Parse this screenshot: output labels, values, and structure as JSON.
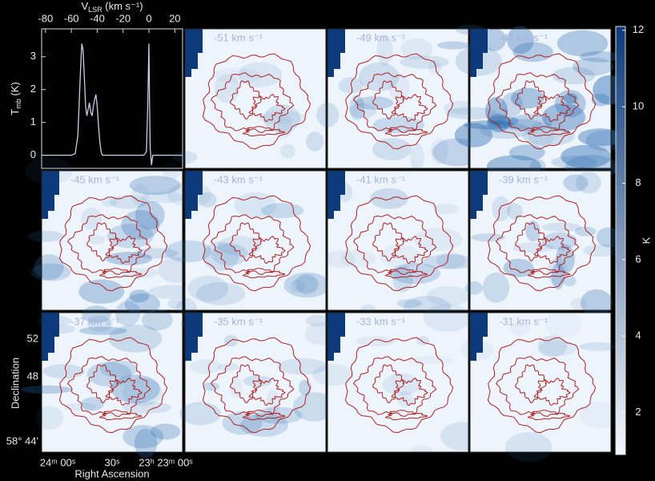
{
  "chart_data": [
    {
      "type": "line",
      "xlabel": {
        "main": "V",
        "sub": "LSR",
        "rest": " (km s⁻¹)"
      },
      "ylabel": {
        "main": "T",
        "sub": "mb",
        "rest": " (K)"
      },
      "x": [
        -83,
        -70,
        -60,
        -57,
        -55,
        -53,
        -52,
        -51,
        -50,
        -49,
        -48,
        -47,
        -46,
        -45,
        -44,
        -43,
        -42,
        -41,
        -40,
        -39,
        -38,
        -37,
        -36,
        -34,
        -30,
        -20,
        -10,
        -4,
        -2,
        -1,
        0,
        0.5,
        1,
        2,
        3,
        5,
        10,
        20,
        26
      ],
      "series": [
        {
          "color": "#c8cde6",
          "values": [
            0,
            0,
            0,
            0.05,
            0.6,
            2.5,
            3.4,
            3.2,
            2.4,
            1.5,
            1.2,
            1.4,
            1.6,
            1.3,
            1.2,
            1.5,
            1.7,
            1.85,
            1.5,
            0.9,
            0.4,
            0.1,
            0,
            0,
            0,
            0,
            0,
            0,
            0.1,
            1.4,
            3.4,
            1.5,
            0.2,
            -0.3,
            0,
            0,
            0,
            0,
            0
          ]
        }
      ],
      "xlim": [
        -83,
        26
      ],
      "xticks": [
        -80,
        -60,
        -40,
        -20,
        0,
        20
      ],
      "ylim": [
        -0.4,
        3.85
      ],
      "yticks": [
        0,
        1,
        2,
        3
      ]
    },
    {
      "type": "channel-maps",
      "labels": [
        "-51 km s⁻¹",
        "-49 km s⁻¹",
        "-47 km s⁻¹",
        "-45 km s⁻¹",
        "-43 km s⁻¹",
        "-41 km s⁻¹",
        "-39 km s⁻¹",
        "-37 km s⁻¹",
        "-35 km s⁻¹",
        "-33 km s⁻¹",
        "-31 km s⁻¹"
      ],
      "contour_color": "#b02020",
      "ylabel": "Declination",
      "yticklabels": [
        "52",
        "48",
        "58° 44'"
      ],
      "xlabel": "Right Ascension",
      "xticklabels": [
        "24ᵐ 00ˢ",
        "30ˢ",
        "23ʰ 23ᵐ 00ˢ"
      ]
    },
    {
      "type": "colorbar",
      "label": "K",
      "colors": [
        "#f4f8fd",
        "#0d3a7a"
      ],
      "ylim": [
        0.9,
        12.1
      ],
      "yticks": [
        2,
        4,
        6,
        8,
        10,
        12
      ]
    }
  ]
}
